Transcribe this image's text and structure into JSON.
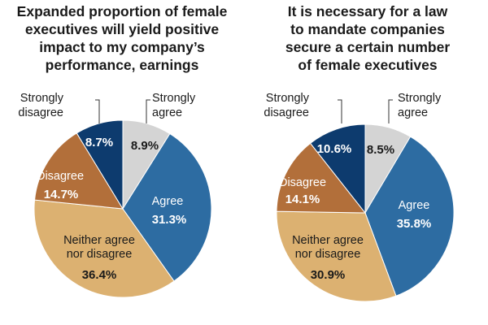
{
  "chart_data": [
    {
      "type": "pie",
      "title": [
        "Expanded proportion of female",
        "executives will yield positive",
        "impact to my company’s",
        "performance, earnings"
      ],
      "slices": [
        {
          "label": [
            "Strongly",
            "agree"
          ],
          "value": 8.9,
          "value_label": "8.9%",
          "color": "#d4d4d4"
        },
        {
          "label": [
            "Agree"
          ],
          "value": 31.3,
          "value_label": "31.3%",
          "color": "#2d6ca2"
        },
        {
          "label": [
            "Neither agree",
            "nor disagree"
          ],
          "value": 36.4,
          "value_label": "36.4%",
          "color": "#dcb171"
        },
        {
          "label": [
            "Disagree"
          ],
          "value": 14.7,
          "value_label": "14.7%",
          "color": "#b26f3a"
        },
        {
          "label": [
            "Strongly",
            "disagree"
          ],
          "value": 8.7,
          "value_label": "8.7%",
          "color": "#0d3b6e"
        }
      ]
    },
    {
      "type": "pie",
      "title": [
        "It is necessary for a  law",
        "to mandate companies",
        "secure a certain number",
        "of female executives"
      ],
      "slices": [
        {
          "label": [
            "Strongly",
            "agree"
          ],
          "value": 8.5,
          "value_label": "8.5%",
          "color": "#d4d4d4"
        },
        {
          "label": [
            "Agree"
          ],
          "value": 35.8,
          "value_label": "35.8%",
          "color": "#2d6ca2"
        },
        {
          "label": [
            "Neither agree",
            "nor disagree"
          ],
          "value": 30.9,
          "value_label": "30.9%",
          "color": "#dcb171"
        },
        {
          "label": [
            "Disagree"
          ],
          "value": 14.1,
          "value_label": "14.1%",
          "color": "#b26f3a"
        },
        {
          "label": [
            "Strongly",
            "disagree"
          ],
          "value": 10.6,
          "value_label": "10.6%",
          "color": "#0d3b6e"
        }
      ]
    }
  ]
}
